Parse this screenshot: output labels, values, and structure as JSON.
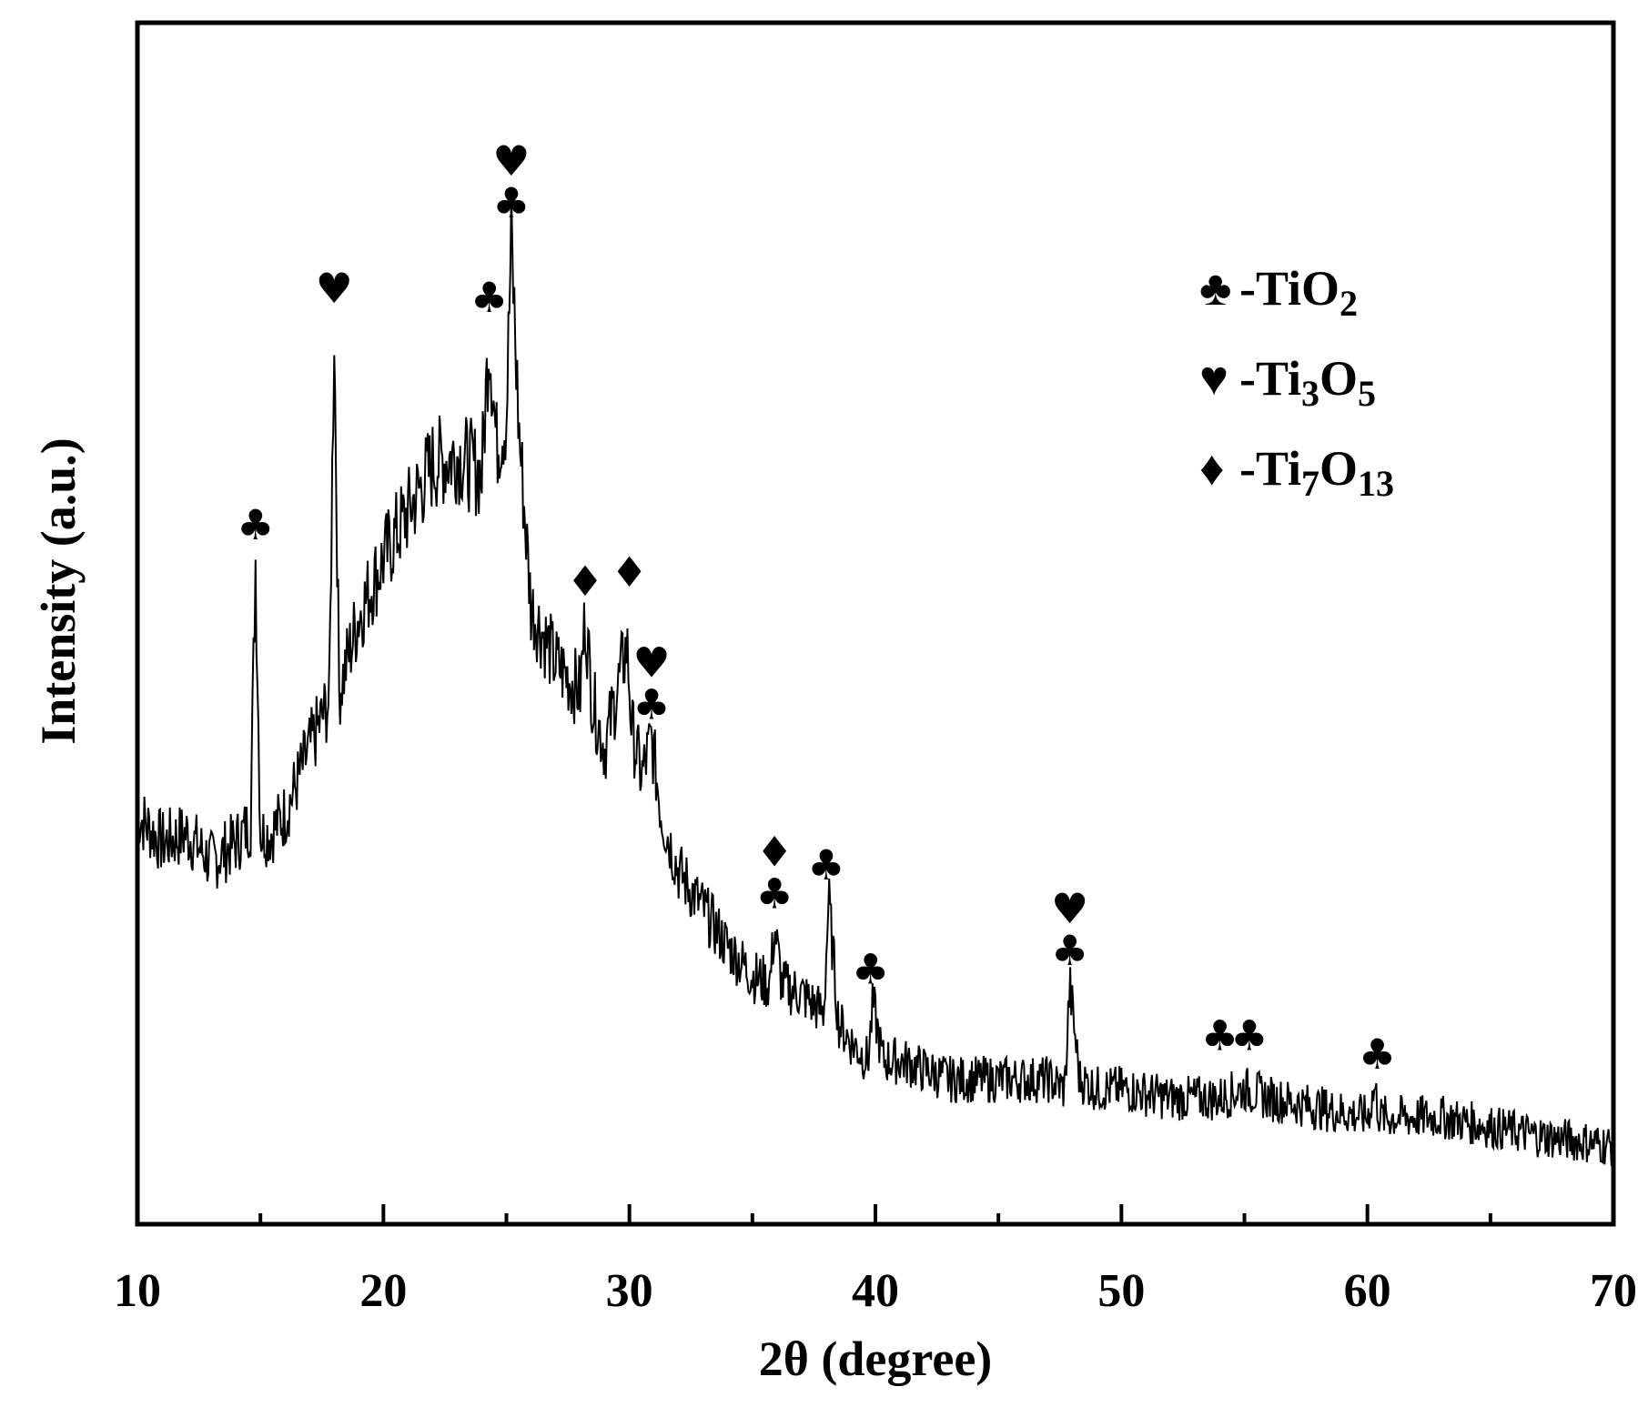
{
  "chart_data": {
    "type": "line",
    "xlabel": "2θ (degree)",
    "ylabel": "Intensity (a.u.)",
    "xlim": [
      10,
      70
    ],
    "xticks": [
      "10",
      "20",
      "30",
      "40",
      "50",
      "60",
      "70"
    ],
    "grid": false,
    "series": [
      {
        "x": [
          10,
          11,
          12,
          13,
          14,
          14.6,
          14.8,
          15,
          15.4,
          16,
          17,
          17.8,
          18.0,
          18.2,
          19,
          20,
          21,
          22,
          23,
          24,
          24.3,
          24.6,
          25.0,
          25.2,
          25.5,
          26,
          27,
          28.0,
          28.2,
          28.5,
          29,
          29.9,
          30.1,
          30.5,
          30.9,
          31.3,
          32,
          33,
          34,
          35,
          35.7,
          35.9,
          36.2,
          37,
          37.9,
          38.1,
          38.5,
          39,
          39.7,
          39.9,
          40.3,
          41,
          43,
          45,
          47,
          47.7,
          47.9,
          48.3,
          49,
          50,
          52,
          54,
          55,
          56,
          58,
          60,
          60.3,
          60.5,
          61,
          63,
          65,
          67,
          70
        ],
        "y": [
          36,
          33,
          34,
          31,
          33,
          35,
          63,
          34,
          34,
          36,
          43,
          48,
          88,
          49,
          57,
          63,
          68,
          73,
          74,
          72,
          87,
          75,
          78,
          97,
          77,
          58,
          52,
          49,
          57,
          48,
          43,
          54,
          45,
          40,
          44,
          36,
          30,
          26,
          22,
          19,
          18,
          24,
          18,
          17,
          15,
          27,
          14,
          12,
          10,
          16,
          10,
          10,
          8,
          8,
          8,
          7,
          18,
          8,
          7,
          7,
          6,
          6,
          7,
          6,
          5,
          4,
          7,
          4,
          4,
          4,
          3,
          2,
          1
        ]
      }
    ],
    "legend": {
      "position": "top-right",
      "entries": [
        {
          "symbol": "♣",
          "label": "-TiO",
          "sub": "2"
        },
        {
          "symbol": "♥",
          "label": "-Ti",
          "sub": "3",
          "label2": "O",
          "sub2": "5"
        },
        {
          "symbol": "♦",
          "label": "-Ti",
          "sub": "7",
          "label2": "O",
          "sub2": "13"
        }
      ]
    },
    "peak_markers": [
      {
        "x": 14.8,
        "y": 63,
        "symbols": [
          "♣"
        ]
      },
      {
        "x": 18.0,
        "y": 88,
        "symbols": [
          "♥"
        ]
      },
      {
        "x": 24.3,
        "y": 87,
        "symbols": [
          "♣"
        ]
      },
      {
        "x": 25.2,
        "y": 97,
        "symbols": [
          "♥",
          "♣"
        ]
      },
      {
        "x": 28.2,
        "y": 57,
        "symbols": [
          "♦"
        ]
      },
      {
        "x": 30.0,
        "y": 58,
        "symbols": [
          "♦"
        ]
      },
      {
        "x": 30.9,
        "y": 44,
        "symbols": [
          "♥",
          "♣"
        ]
      },
      {
        "x": 35.9,
        "y": 24,
        "symbols": [
          "♦",
          "♣"
        ]
      },
      {
        "x": 38.0,
        "y": 27,
        "symbols": [
          "♣"
        ]
      },
      {
        "x": 39.8,
        "y": 16,
        "symbols": [
          "♣"
        ]
      },
      {
        "x": 47.9,
        "y": 18,
        "symbols": [
          "♥",
          "♣"
        ]
      },
      {
        "x": 54.0,
        "y": 9,
        "symbols": [
          "♣"
        ]
      },
      {
        "x": 55.2,
        "y": 9,
        "symbols": [
          "♣"
        ]
      },
      {
        "x": 60.4,
        "y": 7,
        "symbols": [
          "♣"
        ]
      }
    ]
  }
}
